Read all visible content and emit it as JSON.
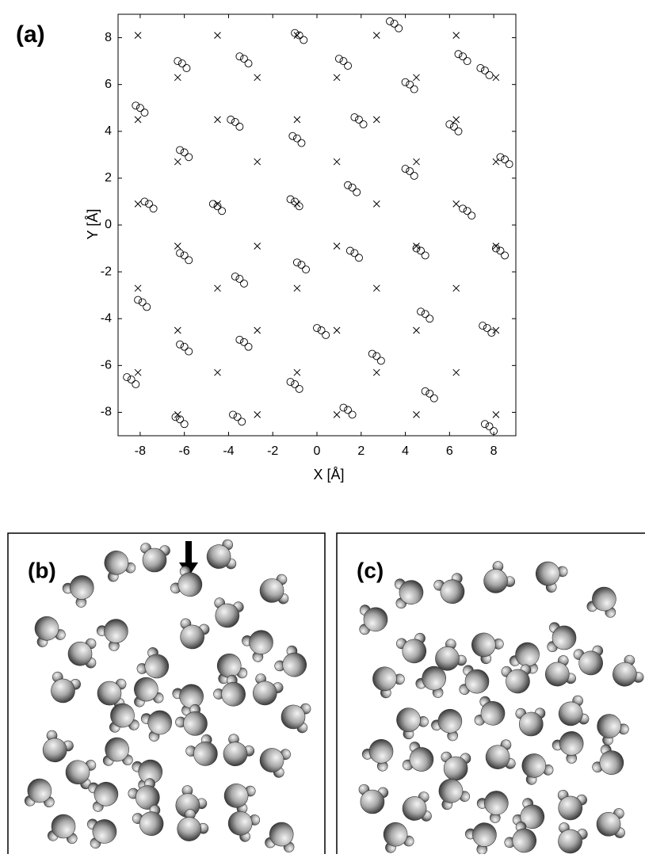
{
  "chart_data": {
    "type": "scatter",
    "panel_label": "(a)",
    "xlabel": "X [Å]",
    "ylabel": "Y [Å]",
    "xlim": [
      -9,
      9
    ],
    "ylim": [
      -9,
      9
    ],
    "xticks": [
      -8,
      -6,
      -4,
      -2,
      0,
      2,
      4,
      6,
      8
    ],
    "yticks": [
      -8,
      -6,
      -4,
      -2,
      0,
      2,
      4,
      6,
      8
    ],
    "series": [
      {
        "marker": "x",
        "color": "#000000",
        "x": [
          -8.1,
          -4.5,
          -0.9,
          2.7,
          6.3,
          -6.3,
          -2.7,
          0.9,
          4.5,
          8.1,
          -8.1,
          -4.5,
          -0.9,
          2.7,
          6.3,
          -6.3,
          -2.7,
          0.9,
          4.5,
          8.1,
          -8.1,
          -4.5,
          -0.9,
          2.7,
          6.3,
          -6.3,
          -2.7,
          0.9,
          4.5,
          8.1,
          -8.1,
          -4.5,
          -0.9,
          2.7,
          6.3,
          -6.3,
          -2.7,
          0.9,
          4.5,
          8.1,
          -8.1,
          -4.5,
          -0.9,
          2.7,
          6.3,
          -6.3,
          -2.7,
          0.9,
          4.5,
          8.1
        ],
        "y": [
          8.1,
          8.1,
          8.1,
          8.1,
          8.1,
          6.3,
          6.3,
          6.3,
          6.3,
          6.3,
          4.5,
          4.5,
          4.5,
          4.5,
          4.5,
          2.7,
          2.7,
          2.7,
          2.7,
          2.7,
          0.9,
          0.9,
          0.9,
          0.9,
          0.9,
          -0.9,
          -0.9,
          -0.9,
          -0.9,
          -0.9,
          -2.7,
          -2.7,
          -2.7,
          -2.7,
          -2.7,
          -4.5,
          -4.5,
          -4.5,
          -4.5,
          -4.5,
          -6.3,
          -6.3,
          -6.3,
          -6.3,
          -6.3,
          -8.1,
          -8.1,
          -8.1,
          -8.1,
          -8.1
        ]
      },
      {
        "marker": "o",
        "color": "#000000",
        "x": [
          3.5,
          3.7,
          3.3,
          -0.8,
          -0.6,
          -1.0,
          1.2,
          1.4,
          1.0,
          -6.1,
          -5.9,
          -6.3,
          -3.3,
          -3.1,
          -3.5,
          4.2,
          4.4,
          4.0,
          7.6,
          7.8,
          7.4,
          6.6,
          6.8,
          6.4,
          -8.0,
          -7.8,
          -8.2,
          -3.7,
          -3.5,
          -3.9,
          -0.9,
          -0.7,
          -1.1,
          1.9,
          2.1,
          1.7,
          6.2,
          6.4,
          6.0,
          -6.0,
          -5.8,
          -6.2,
          4.2,
          4.4,
          4.0,
          8.5,
          8.7,
          8.3,
          -7.6,
          -7.4,
          -7.8,
          -4.5,
          -4.3,
          -4.7,
          -1.0,
          -0.8,
          -1.2,
          1.6,
          1.8,
          1.4,
          6.8,
          7.0,
          6.6,
          -6.0,
          -5.8,
          -6.2,
          -3.5,
          -3.3,
          -3.7,
          -0.7,
          -0.5,
          -0.9,
          1.7,
          1.9,
          1.5,
          4.7,
          4.9,
          4.5,
          8.3,
          8.5,
          8.1,
          -7.9,
          -7.7,
          -8.1,
          4.9,
          5.1,
          4.7,
          7.7,
          7.9,
          7.5,
          -6.0,
          -5.8,
          -6.2,
          -3.3,
          -3.1,
          -3.5,
          0.2,
          0.4,
          0.0,
          2.7,
          2.9,
          2.5,
          -8.4,
          -8.2,
          -8.6,
          -1.0,
          -0.8,
          -1.2,
          5.1,
          5.3,
          4.9,
          -6.2,
          -6.0,
          -6.4,
          -3.6,
          -3.4,
          -3.8,
          1.4,
          1.6,
          1.2,
          7.8,
          8.0,
          7.6
        ],
        "y": [
          8.6,
          8.4,
          8.7,
          8.1,
          7.9,
          8.2,
          7.0,
          6.8,
          7.1,
          6.9,
          6.7,
          7.0,
          7.1,
          6.9,
          7.2,
          6.0,
          5.8,
          6.1,
          6.6,
          6.4,
          6.7,
          7.2,
          7.0,
          7.3,
          5.0,
          4.8,
          5.1,
          4.4,
          4.2,
          4.5,
          3.7,
          3.5,
          3.8,
          4.5,
          4.3,
          4.6,
          4.2,
          4.0,
          4.3,
          3.1,
          2.9,
          3.2,
          2.3,
          2.1,
          2.4,
          2.8,
          2.6,
          2.9,
          0.9,
          0.7,
          1.0,
          0.8,
          0.6,
          0.9,
          1.0,
          0.8,
          1.1,
          1.6,
          1.4,
          1.7,
          0.6,
          0.4,
          0.7,
          -1.3,
          -1.5,
          -1.2,
          -2.3,
          -2.5,
          -2.2,
          -1.7,
          -1.9,
          -1.6,
          -1.2,
          -1.4,
          -1.1,
          -1.1,
          -1.3,
          -1.0,
          -1.1,
          -1.3,
          -1.0,
          -3.3,
          -3.5,
          -3.2,
          -3.8,
          -4.0,
          -3.7,
          -4.4,
          -4.6,
          -4.3,
          -5.2,
          -5.4,
          -5.1,
          -5.0,
          -5.2,
          -4.9,
          -4.5,
          -4.7,
          -4.4,
          -5.6,
          -5.8,
          -5.5,
          -6.6,
          -6.8,
          -6.5,
          -6.8,
          -7.0,
          -6.7,
          -7.2,
          -7.4,
          -7.1,
          -8.3,
          -8.5,
          -8.2,
          -8.2,
          -8.4,
          -8.1,
          -7.9,
          -8.1,
          -7.8,
          -8.6,
          -8.8,
          -8.5
        ]
      }
    ]
  },
  "panels": [
    "(b)",
    "(c)"
  ]
}
